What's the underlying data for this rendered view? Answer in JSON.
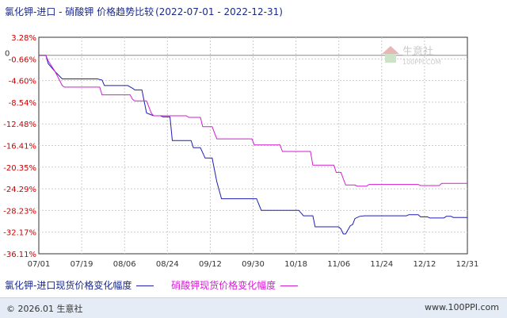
{
  "header": {
    "title": "氯化钾-进口 - 硝酸钾 价格趋势比较",
    "range": "(2022-07-01 - 2022-12-31)"
  },
  "watermark": {
    "brand": "生意社",
    "url": "100PPI.COM"
  },
  "footer": {
    "copyright": "© 2026.01 生意社",
    "site": "www.100PPI.com"
  },
  "colors": {
    "series1": "#1f1fb4",
    "series2": "#d21ed2",
    "axis": "#333333",
    "grid": "#cccccc",
    "ylabel": "#cc0000",
    "zero": "#888888"
  },
  "chart_data": {
    "type": "line",
    "title": "氯化钾-进口 - 硝酸钾 价格趋势比较",
    "xlabel": "",
    "ylabel": "",
    "ylim": [
      -36.11,
      3.28
    ],
    "x_ticks": [
      "07/01",
      "07/19",
      "08/06",
      "08/24",
      "09/12",
      "09/30",
      "10/18",
      "11/06",
      "11/24",
      "12/12",
      "12/31"
    ],
    "y_ticks": [
      "3.28%",
      "-0.66%",
      "-4.60%",
      "-8.54%",
      "-12.48%",
      "-16.41%",
      "-20.35%",
      "-24.29%",
      "-28.23%",
      "-32.17%",
      "-36.11%"
    ],
    "y_tick_values": [
      3.28,
      -0.66,
      -4.6,
      -8.54,
      -12.48,
      -16.41,
      -20.35,
      -24.29,
      -28.23,
      -32.17,
      -36.11
    ],
    "zero_label": "0",
    "grid": true,
    "legend_position": "bottom",
    "series": [
      {
        "name": "氯化钾-进口现货价格变化幅度",
        "color": "#1f1fb4",
        "points": [
          [
            0,
            0
          ],
          [
            3,
            0
          ],
          [
            4,
            -1.5
          ],
          [
            7,
            -3.0
          ],
          [
            10,
            -4.3
          ],
          [
            25,
            -4.3
          ],
          [
            27,
            -4.5
          ],
          [
            28,
            -5.5
          ],
          [
            38,
            -5.5
          ],
          [
            40,
            -6.0
          ],
          [
            41,
            -6.3
          ],
          [
            44,
            -6.3
          ],
          [
            46,
            -10.5
          ],
          [
            49,
            -11.0
          ],
          [
            52,
            -11.0
          ],
          [
            53,
            -11.2
          ],
          [
            56,
            -11.2
          ],
          [
            57,
            -15.5
          ],
          [
            65,
            -15.5
          ],
          [
            66,
            -16.8
          ],
          [
            69,
            -16.8
          ],
          [
            71,
            -18.7
          ],
          [
            74,
            -18.7
          ],
          [
            76,
            -23.0
          ],
          [
            78,
            -26.1
          ],
          [
            93,
            -26.1
          ],
          [
            95,
            -28.2
          ],
          [
            111,
            -28.2
          ],
          [
            113,
            -29.2
          ],
          [
            117,
            -29.2
          ],
          [
            118,
            -31.2
          ],
          [
            128,
            -31.2
          ],
          [
            129,
            -31.6
          ],
          [
            130,
            -32.5
          ],
          [
            131,
            -32.5
          ],
          [
            133,
            -31.0
          ],
          [
            134,
            -30.8
          ],
          [
            135,
            -29.7
          ],
          [
            137,
            -29.3
          ],
          [
            139,
            -29.2
          ],
          [
            157,
            -29.2
          ],
          [
            158,
            -29.0
          ],
          [
            162,
            -29.0
          ],
          [
            163,
            -29.4
          ],
          [
            166,
            -29.4
          ],
          [
            167,
            -29.6
          ],
          [
            173,
            -29.6
          ],
          [
            174,
            -29.3
          ],
          [
            176,
            -29.3
          ],
          [
            177,
            -29.5
          ],
          [
            183,
            -29.5
          ]
        ]
      },
      {
        "name": "硝酸钾现货价格变化幅度",
        "color": "#d21ed2",
        "points": [
          [
            0,
            0
          ],
          [
            3,
            0
          ],
          [
            4,
            -1.0
          ],
          [
            7,
            -3.0
          ],
          [
            10,
            -5.5
          ],
          [
            11,
            -5.8
          ],
          [
            26,
            -5.8
          ],
          [
            27,
            -7.2
          ],
          [
            39,
            -7.2
          ],
          [
            40,
            -8.0
          ],
          [
            41,
            -8.3
          ],
          [
            46,
            -8.3
          ],
          [
            48,
            -10.5
          ],
          [
            49,
            -11.0
          ],
          [
            63,
            -11.0
          ],
          [
            64,
            -11.3
          ],
          [
            69,
            -11.3
          ],
          [
            70,
            -13.0
          ],
          [
            74,
            -13.0
          ],
          [
            76,
            -15.2
          ],
          [
            91,
            -15.2
          ],
          [
            92,
            -16.3
          ],
          [
            103,
            -16.3
          ],
          [
            104,
            -17.5
          ],
          [
            116,
            -17.5
          ],
          [
            117,
            -20.0
          ],
          [
            126,
            -20.0
          ],
          [
            127,
            -21.3
          ],
          [
            129,
            -21.3
          ],
          [
            131,
            -23.6
          ],
          [
            135,
            -23.6
          ],
          [
            136,
            -23.8
          ],
          [
            140,
            -23.8
          ],
          [
            141,
            -23.5
          ],
          [
            162,
            -23.5
          ],
          [
            163,
            -23.7
          ],
          [
            171,
            -23.7
          ],
          [
            172,
            -23.3
          ],
          [
            183,
            -23.3
          ]
        ]
      }
    ]
  }
}
